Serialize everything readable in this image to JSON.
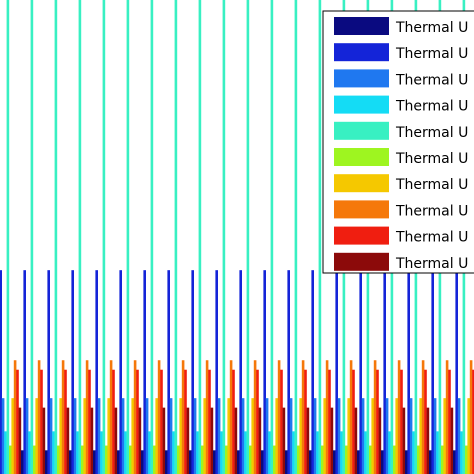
{
  "chart_data": {
    "type": "bar",
    "title": "",
    "xlabel": "",
    "ylabel": "",
    "grid": false,
    "legend_position": "top-right",
    "ylim": [
      0,
      10
    ],
    "groups": 20,
    "series": [
      {
        "name": "Thermal U",
        "color": "#0a0a80",
        "values": [
          0.5,
          0.5,
          0.5,
          0.5,
          0.5,
          0.5,
          0.5,
          0.5,
          0.5,
          0.5,
          0.5,
          0.5,
          0.5,
          0.5,
          0.5,
          0.5,
          0.5,
          0.5,
          0.5,
          0.5
        ]
      },
      {
        "name": "Thermal U",
        "color": "#1424d8",
        "values": [
          4.3,
          4.3,
          4.3,
          4.3,
          4.3,
          4.3,
          4.3,
          4.3,
          4.3,
          4.3,
          4.3,
          4.3,
          4.3,
          4.3,
          4.3,
          4.3,
          4.3,
          4.3,
          4.3,
          4.3
        ]
      },
      {
        "name": "Thermal U",
        "color": "#1f78f0",
        "values": [
          1.6,
          1.6,
          1.6,
          1.6,
          1.6,
          1.6,
          1.6,
          1.6,
          1.6,
          1.6,
          1.6,
          1.6,
          1.6,
          1.6,
          1.6,
          1.6,
          1.6,
          1.6,
          1.6,
          1.6
        ]
      },
      {
        "name": "Thermal U",
        "color": "#14dcf5",
        "values": [
          0.9,
          0.9,
          0.9,
          0.9,
          0.9,
          0.9,
          0.9,
          0.9,
          0.9,
          0.9,
          0.9,
          0.9,
          0.9,
          0.9,
          0.9,
          0.9,
          0.9,
          0.9,
          0.9,
          0.9
        ]
      },
      {
        "name": "Thermal U",
        "color": "#38f0c2",
        "values": [
          10,
          10,
          10,
          10,
          10,
          10,
          10,
          10,
          10,
          10,
          10,
          10,
          10,
          10,
          10,
          10,
          10,
          10,
          10,
          10
        ]
      },
      {
        "name": "Thermal U",
        "color": "#9ef520",
        "values": [
          0.6,
          0.6,
          0.6,
          0.6,
          0.6,
          0.6,
          0.6,
          0.6,
          0.6,
          0.6,
          0.6,
          0.6,
          0.6,
          0.6,
          0.6,
          0.6,
          0.6,
          0.6,
          0.6,
          0.6
        ]
      },
      {
        "name": "Thermal U",
        "color": "#f5c800",
        "values": [
          1.6,
          1.6,
          1.6,
          1.6,
          1.6,
          1.6,
          1.6,
          1.6,
          1.6,
          1.6,
          1.6,
          1.6,
          1.6,
          1.6,
          1.6,
          1.6,
          1.6,
          1.6,
          1.6,
          1.6
        ]
      },
      {
        "name": "Thermal U",
        "color": "#f5780a",
        "values": [
          2.4,
          2.4,
          2.4,
          2.4,
          2.4,
          2.4,
          2.4,
          2.4,
          2.4,
          2.4,
          2.4,
          2.4,
          2.4,
          2.4,
          2.4,
          2.4,
          2.4,
          2.4,
          2.4,
          2.4
        ]
      },
      {
        "name": "Thermal U",
        "color": "#f01e10",
        "values": [
          2.2,
          2.2,
          2.2,
          2.2,
          2.2,
          2.2,
          2.2,
          2.2,
          2.2,
          2.2,
          2.2,
          2.2,
          2.2,
          2.2,
          2.2,
          2.2,
          2.2,
          2.2,
          2.2,
          2.2
        ]
      },
      {
        "name": "Thermal U",
        "color": "#8c0a0a",
        "values": [
          1.4,
          1.4,
          1.4,
          1.4,
          1.4,
          1.4,
          1.4,
          1.4,
          1.4,
          1.4,
          1.4,
          1.4,
          1.4,
          1.4,
          1.4,
          1.4,
          1.4,
          1.4,
          1.4,
          1.4
        ]
      }
    ]
  }
}
